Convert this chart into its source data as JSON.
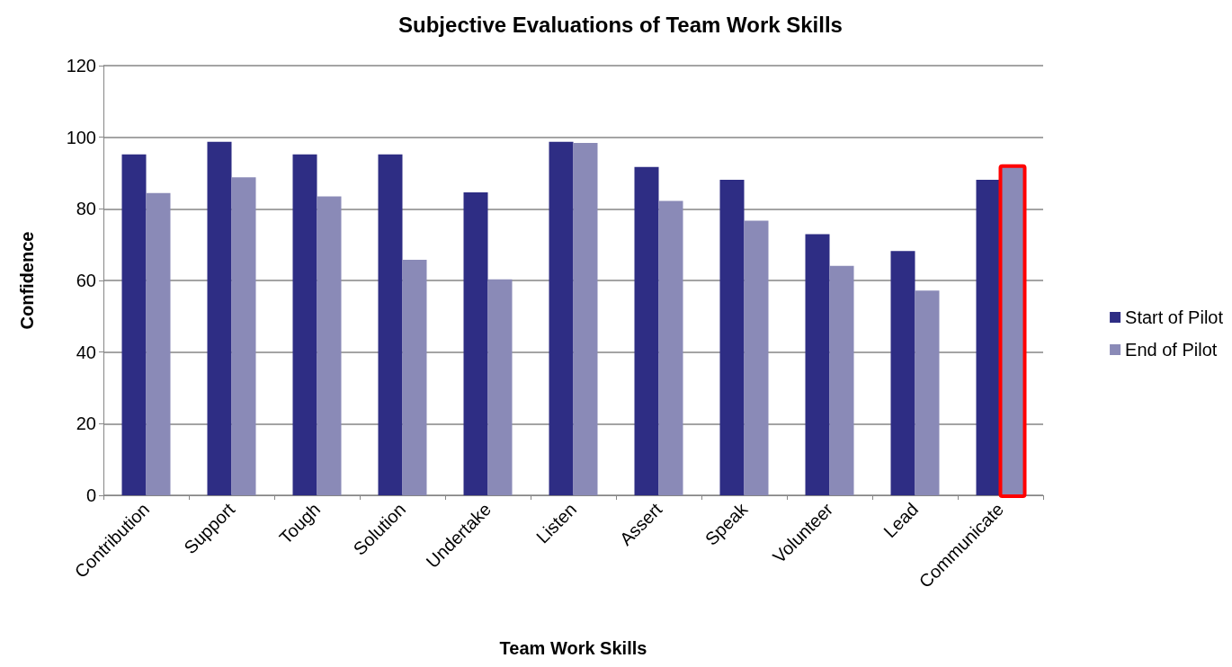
{
  "chart_data": {
    "type": "bar",
    "title": "Subjective Evaluations of Team Work Skills",
    "xlabel": "Team Work Skills",
    "ylabel": "Confidence",
    "categories": [
      "Contribution",
      "Support",
      "Tough",
      "Solution",
      "Undertake",
      "Listen",
      "Assert",
      "Speak",
      "Volunteer",
      "Lead",
      "Communicate"
    ],
    "series": [
      {
        "name": "Start of Pilot",
        "color": "#2e2d84",
        "values": [
          95.2,
          98.7,
          95.2,
          95.2,
          84.6,
          98.7,
          91.7,
          88.1,
          72.9,
          68.2,
          88.1
        ]
      },
      {
        "name": "End of Pilot",
        "color": "#8a8ab7",
        "values": [
          84.4,
          88.8,
          83.5,
          65.8,
          60.3,
          98.4,
          82.2,
          76.7,
          64.1,
          57.2,
          91.7
        ]
      }
    ],
    "ylim": [
      0,
      120
    ],
    "yticks": [
      0,
      20,
      40,
      60,
      80,
      100,
      120
    ],
    "grid": "y",
    "legend": "right"
  }
}
